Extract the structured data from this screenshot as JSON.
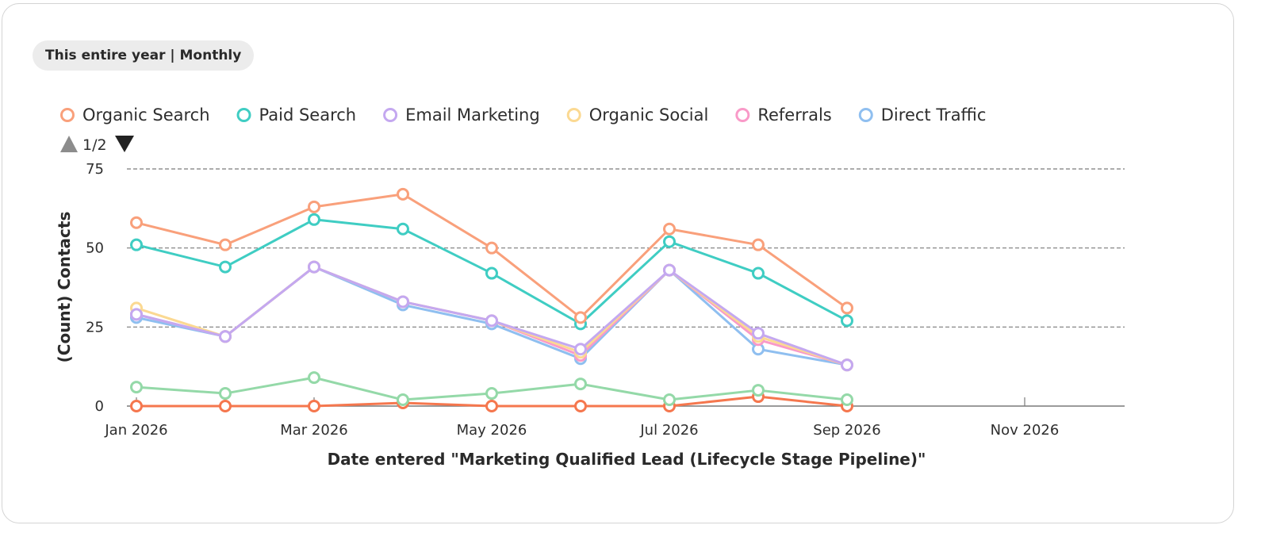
{
  "filter": {
    "label": "This entire year | Monthly"
  },
  "legend": {
    "pager": {
      "text": "1/2"
    }
  },
  "chart_data": {
    "type": "line",
    "xlabel": "Date entered \"Marketing Qualified Lead (Lifecycle Stage Pipeline)\"",
    "ylabel": "(Count) Contacts",
    "ylim": [
      0,
      75
    ],
    "yticks": [
      0,
      25,
      50,
      75
    ],
    "xlim": [
      "2026-01",
      "2026-12"
    ],
    "xticks": [
      {
        "x": "2026-01",
        "label": "Jan 2026"
      },
      {
        "x": "2026-03",
        "label": "Mar 2026"
      },
      {
        "x": "2026-05",
        "label": "May 2026"
      },
      {
        "x": "2026-07",
        "label": "Jul 2026"
      },
      {
        "x": "2026-09",
        "label": "Sep 2026"
      },
      {
        "x": "2026-11",
        "label": "Nov 2026"
      }
    ],
    "grid": "horizontal dashed",
    "legend_position": "top-left",
    "x": [
      "2026-01",
      "2026-02",
      "2026-03",
      "2026-04",
      "2026-05",
      "2026-06",
      "2026-07",
      "2026-08",
      "2026-09"
    ],
    "series": [
      {
        "name": "Organic Search",
        "color": "#f9a07b",
        "values": [
          58,
          51,
          63,
          67,
          50,
          28,
          56,
          51,
          31
        ],
        "in_legend": true
      },
      {
        "name": "Paid Search",
        "color": "#3fcdc3",
        "values": [
          51,
          44,
          59,
          56,
          42,
          26,
          52,
          42,
          27
        ],
        "in_legend": true
      },
      {
        "name": "Email Marketing",
        "color": "#c4a8f0",
        "values": [
          29,
          22,
          44,
          33,
          27,
          18,
          43,
          23,
          13
        ],
        "in_legend": true
      },
      {
        "name": "Organic Social",
        "color": "#fbd992",
        "values": [
          31,
          22,
          44,
          33,
          27,
          17,
          43,
          22,
          13
        ],
        "in_legend": true
      },
      {
        "name": "Referrals",
        "color": "#f99ac8",
        "values": [
          29,
          22,
          44,
          33,
          27,
          16,
          43,
          21,
          13
        ],
        "in_legend": true
      },
      {
        "name": "Direct Traffic",
        "color": "#8fbff0",
        "values": [
          28,
          22,
          44,
          32,
          26,
          15,
          43,
          18,
          13
        ],
        "in_legend": true
      },
      {
        "name": "",
        "color": "#94d9a8",
        "values": [
          6,
          4,
          9,
          2,
          4,
          7,
          2,
          5,
          2
        ],
        "in_legend": false
      },
      {
        "name": "",
        "color": "#f5774e",
        "values": [
          0,
          0,
          0,
          1,
          0,
          0,
          0,
          3,
          0
        ],
        "in_legend": false
      }
    ]
  }
}
